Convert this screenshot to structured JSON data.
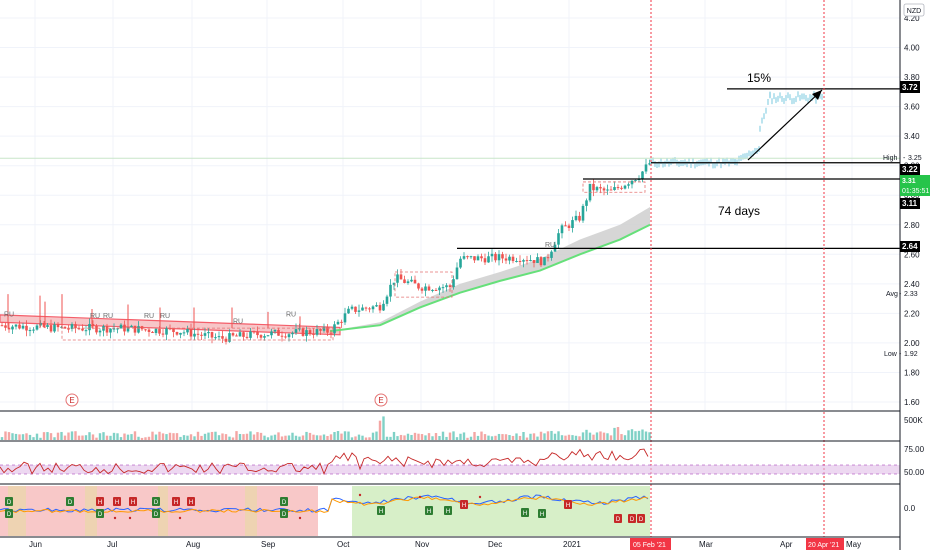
{
  "chart_data": {
    "type": "candlestick",
    "currency": "NZD",
    "y_axis": {
      "ticks": [
        "4.20",
        "4.00",
        "3.80",
        "3.60",
        "3.40",
        "3.20",
        "3.00",
        "2.80",
        "2.60",
        "2.40",
        "2.20",
        "2.00",
        "1.80",
        "1.60"
      ],
      "ylim": [
        1.52,
        4.35
      ],
      "labels": {
        "price_3_72": "3.72",
        "high_label": "High",
        "high_value": "3.25",
        "price_3_22": "3.22",
        "last_price": "3.31",
        "countdown": "01:35:51",
        "price_3_11": "3.11",
        "price_2_64": "2.64",
        "avg_label": "Avg",
        "avg_value": "2.33",
        "low_label": "Low",
        "low_value": "1.92"
      }
    },
    "x_axis": {
      "ticks": [
        "Jun",
        "Jul",
        "Aug",
        "Sep",
        "Oct",
        "Nov",
        "Dec",
        "2021",
        "Mar",
        "Apr",
        "May"
      ],
      "highlight_start": "05 Feb '21",
      "highlight_end": "20 Apr '21"
    },
    "horizontal_levels": [
      3.72,
      3.22,
      3.11,
      2.64
    ],
    "annotations": {
      "percent_move": "15%",
      "duration": "74 days",
      "earnings_marker": "E",
      "pattern_tag": "RU",
      "signal_h": "H",
      "signal_d": "D"
    },
    "price_path": [
      {
        "month": "Jun",
        "close": 2.12
      },
      {
        "month": "Jul",
        "close": 2.1
      },
      {
        "month": "Aug",
        "close": 2.05
      },
      {
        "month": "Sep",
        "close": 2.06
      },
      {
        "month": "Oct",
        "close": 2.18
      },
      {
        "month": "Nov",
        "close": 2.36
      },
      {
        "month": "Dec",
        "close": 2.62
      },
      {
        "month": "2021",
        "close": 2.85
      },
      {
        "month": "Feb",
        "close": 3.22
      }
    ],
    "projection": [
      3.22,
      3.2,
      3.25,
      3.5,
      3.68,
      3.72
    ],
    "volume_pane": {
      "ticks": [
        "500K"
      ]
    },
    "rsi_pane": {
      "ticks": [
        "75.00",
        "50.00"
      ]
    },
    "osc_pane": {
      "ticks": [
        "0.0"
      ]
    },
    "colors": {
      "up": "#26a69a",
      "down": "#ef5350",
      "ma_fast": "#f23645",
      "ma_slow_up": "#66e07a",
      "projection": "#9fd8e8",
      "date_marker": "#f23645",
      "rsi_line": "#c62828",
      "rsi_band": "#e1bee7",
      "osc_red_bg": "#f8c8c8",
      "osc_green_bg": "#d7efc8"
    }
  }
}
